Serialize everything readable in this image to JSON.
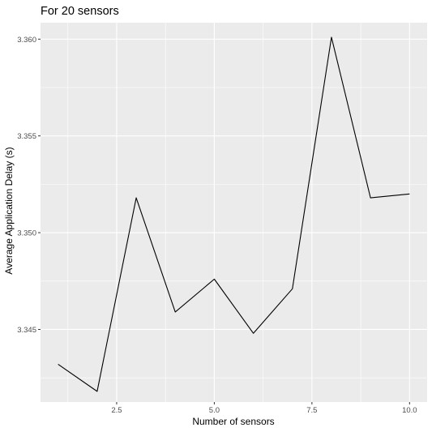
{
  "chart_data": {
    "type": "line",
    "title": "For 20 sensors",
    "xlabel": "Number of sensors",
    "ylabel": "Average Application Delay (s)",
    "x": [
      1,
      2,
      3,
      4,
      5,
      6,
      7,
      8,
      9,
      10
    ],
    "series": [
      {
        "values": [
          3.3432,
          3.3418,
          3.3518,
          3.3459,
          3.3476,
          3.3448,
          3.3471,
          3.3601,
          3.3518,
          3.352
        ]
      }
    ],
    "xlim": [
      0.55,
      10.45
    ],
    "ylim": [
      3.34125,
      3.36085
    ],
    "xticks": [
      2.5,
      5.0,
      7.5,
      10.0
    ],
    "xtick_labels": [
      "2.5",
      "5.0",
      "7.5",
      "10.0"
    ],
    "yticks": [
      3.345,
      3.35,
      3.355,
      3.36
    ],
    "ytick_labels": [
      "3.345",
      "3.350",
      "3.355",
      "3.360"
    ],
    "grid": true,
    "colors": {
      "panel": "#ebebeb",
      "grid": "#ffffff",
      "line": "#000000"
    }
  }
}
